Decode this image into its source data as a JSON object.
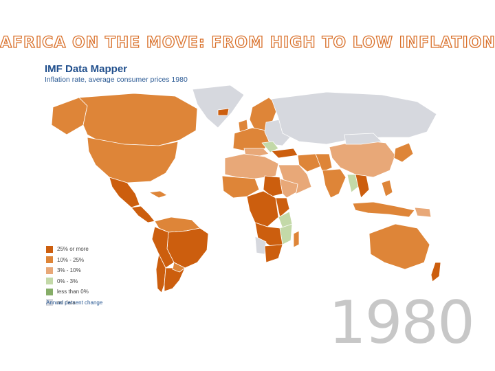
{
  "slide": {
    "title": "AFRICA ON THE MOVE: FROM HIGH TO LOW INFLATION",
    "year": "1980"
  },
  "mapper": {
    "title": "IMF Data Mapper",
    "subtitle": "Inflation rate, average consumer prices 1980"
  },
  "legend": {
    "items": [
      {
        "label": "25% or more",
        "color": "#cc5e0e"
      },
      {
        "label": "10% - 25%",
        "color": "#de8538"
      },
      {
        "label": "3% - 10%",
        "color": "#e8a878"
      },
      {
        "label": "0% - 3%",
        "color": "#c3d9a8"
      },
      {
        "label": "less than 0%",
        "color": "#86ad68"
      },
      {
        "label": "no data",
        "color": "#d6d8de"
      }
    ],
    "note": "Annual percent change"
  },
  "colors": {
    "ocean": "#ffffff",
    "border": "#ffffff"
  }
}
